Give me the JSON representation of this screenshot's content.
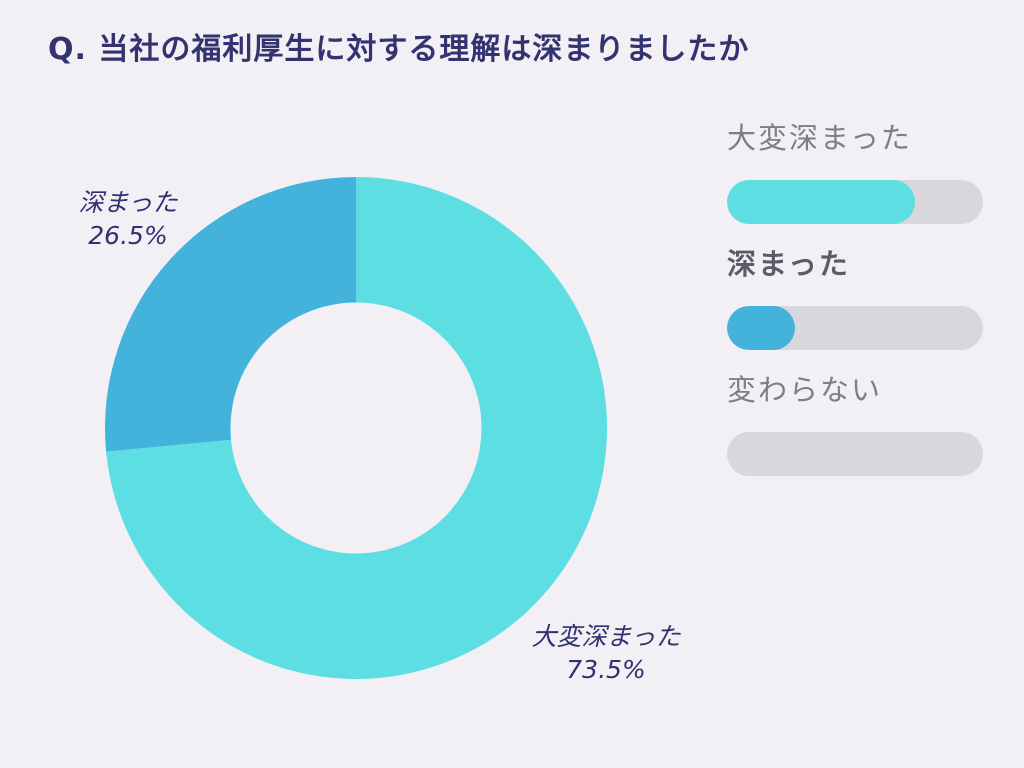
{
  "page": {
    "title": "Q. 当社の福利厚生に対する理解は深まりましたか",
    "background_color": "#F2F0F5",
    "title_color": "#33336F",
    "slice_label_color": "#2F3170"
  },
  "chart_data": {
    "type": "pie",
    "donut": true,
    "inner_radius_ratio": 0.5,
    "start_angle_deg": 0,
    "direction": "clockwise",
    "title": "Q. 当社の福利厚生に対する理解は深まりましたか",
    "categories": [
      "大変深まった",
      "深まった",
      "変わらない"
    ],
    "values": [
      73.5,
      26.5,
      0
    ],
    "segments": [
      {
        "label": "大変深まった",
        "value": 73.5,
        "color": "#5CDEE3"
      },
      {
        "label": "深まった",
        "value": 26.5,
        "color": "#43B3DB"
      },
      {
        "label": "変わらない",
        "value": 0,
        "color": "#D9D7DB"
      }
    ],
    "slice_labels": [
      {
        "text": "深まった",
        "pct_text": "26.5%"
      },
      {
        "text": "大変深まった",
        "pct_text": "73.5%"
      }
    ],
    "legend_position": "right"
  },
  "legend": {
    "track_color": "#D9D7DB",
    "label_color": "#7E7E87",
    "label_color_bold": "#5C5C66",
    "items": [
      {
        "label": "大変深まった",
        "value_pct": 73.5,
        "fill_color": "#5CDEE3",
        "bold": false
      },
      {
        "label": "深まった",
        "value_pct": 26.5,
        "fill_color": "#43B3DB",
        "bold": true
      },
      {
        "label": "変わらない",
        "value_pct": 0,
        "fill_color": "#D9D7DB",
        "bold": false
      }
    ]
  }
}
